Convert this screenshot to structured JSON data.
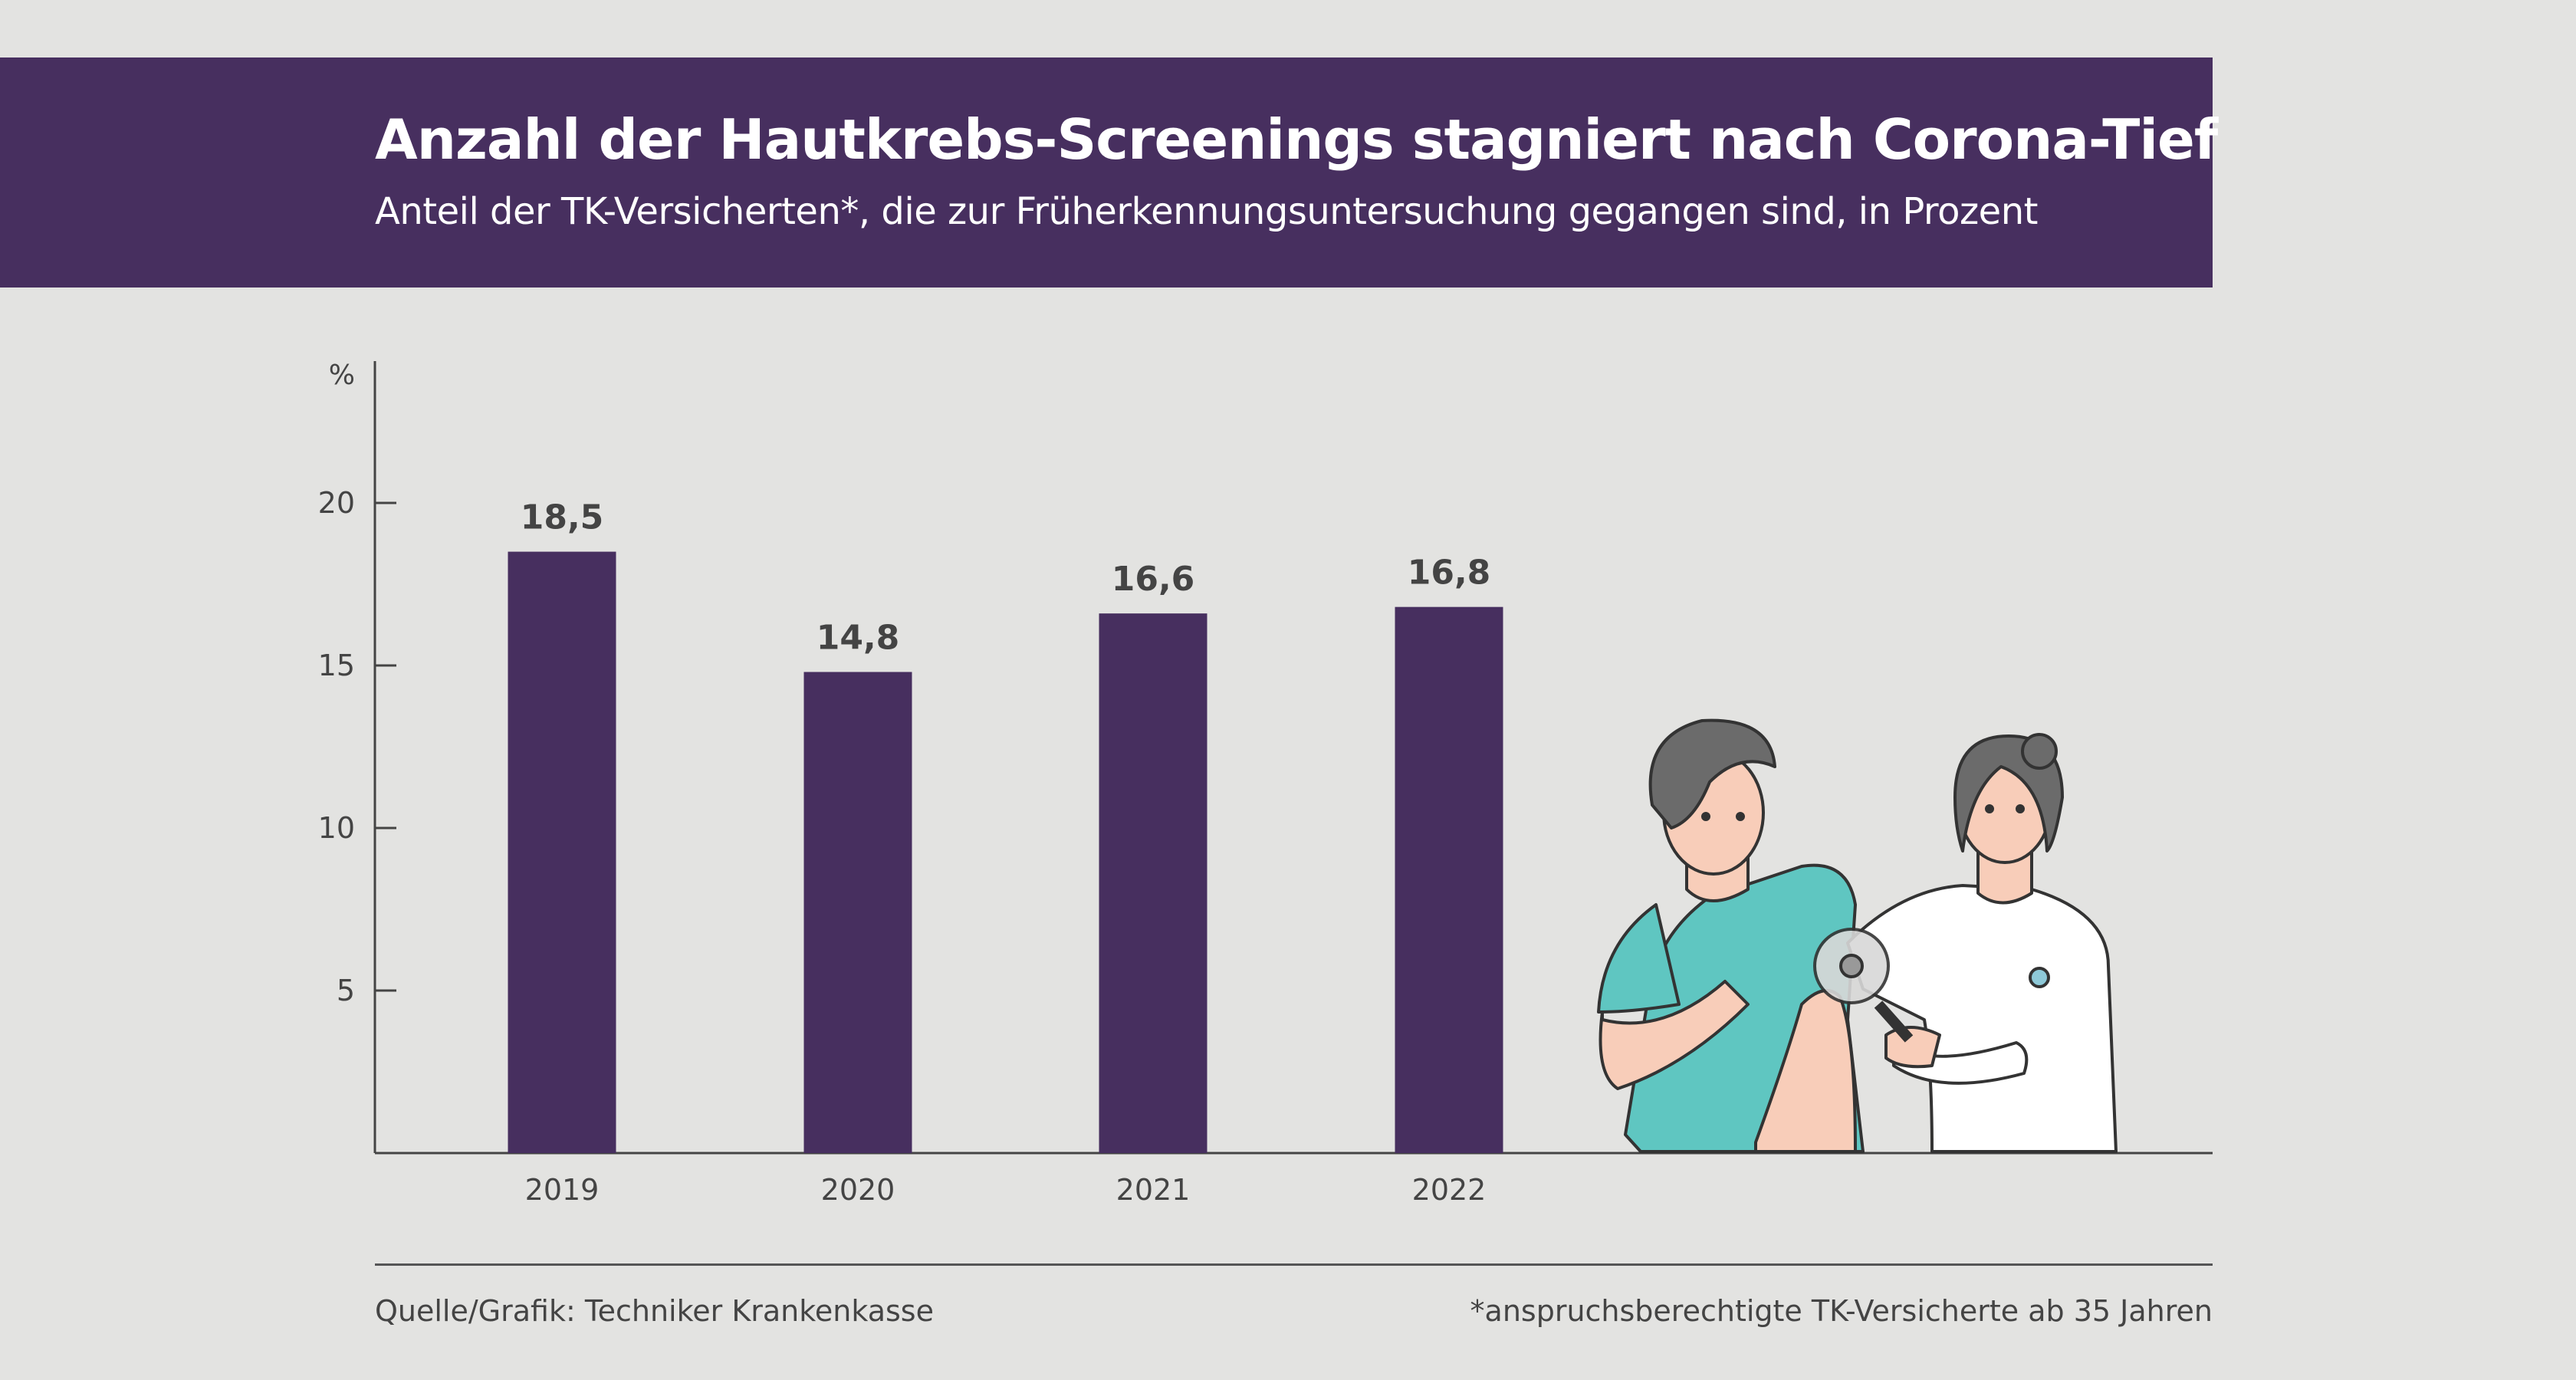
{
  "header": {
    "title": "Anzahl der Hautkrebs-Screenings stagniert nach Corona-Tief",
    "subtitle": "Anteil der TK-Versicherten*, die zur Früherkennungsuntersuchung gegangen sind, in Prozent"
  },
  "footer": {
    "source": "Quelle/Grafik: Techniker Krankenkasse",
    "note": "*anspruchsberechtigte TK-Versicherte ab 35 Jahren"
  },
  "colors": {
    "bar": "#472f5f",
    "banner": "#472f5f",
    "background": "#e3e3e1"
  },
  "chart_data": {
    "type": "bar",
    "title": "Anzahl der Hautkrebs-Screenings stagniert nach Corona-Tief",
    "categories": [
      "2019",
      "2020",
      "2021",
      "2022"
    ],
    "values": [
      18.5,
      14.8,
      16.6,
      16.8
    ],
    "value_labels": [
      "18,5",
      "14,8",
      "16,6",
      "16,8"
    ],
    "ylabel": "%",
    "yticks": [
      5,
      10,
      15,
      20
    ],
    "ylim": [
      0,
      24.3
    ],
    "grid": false
  }
}
